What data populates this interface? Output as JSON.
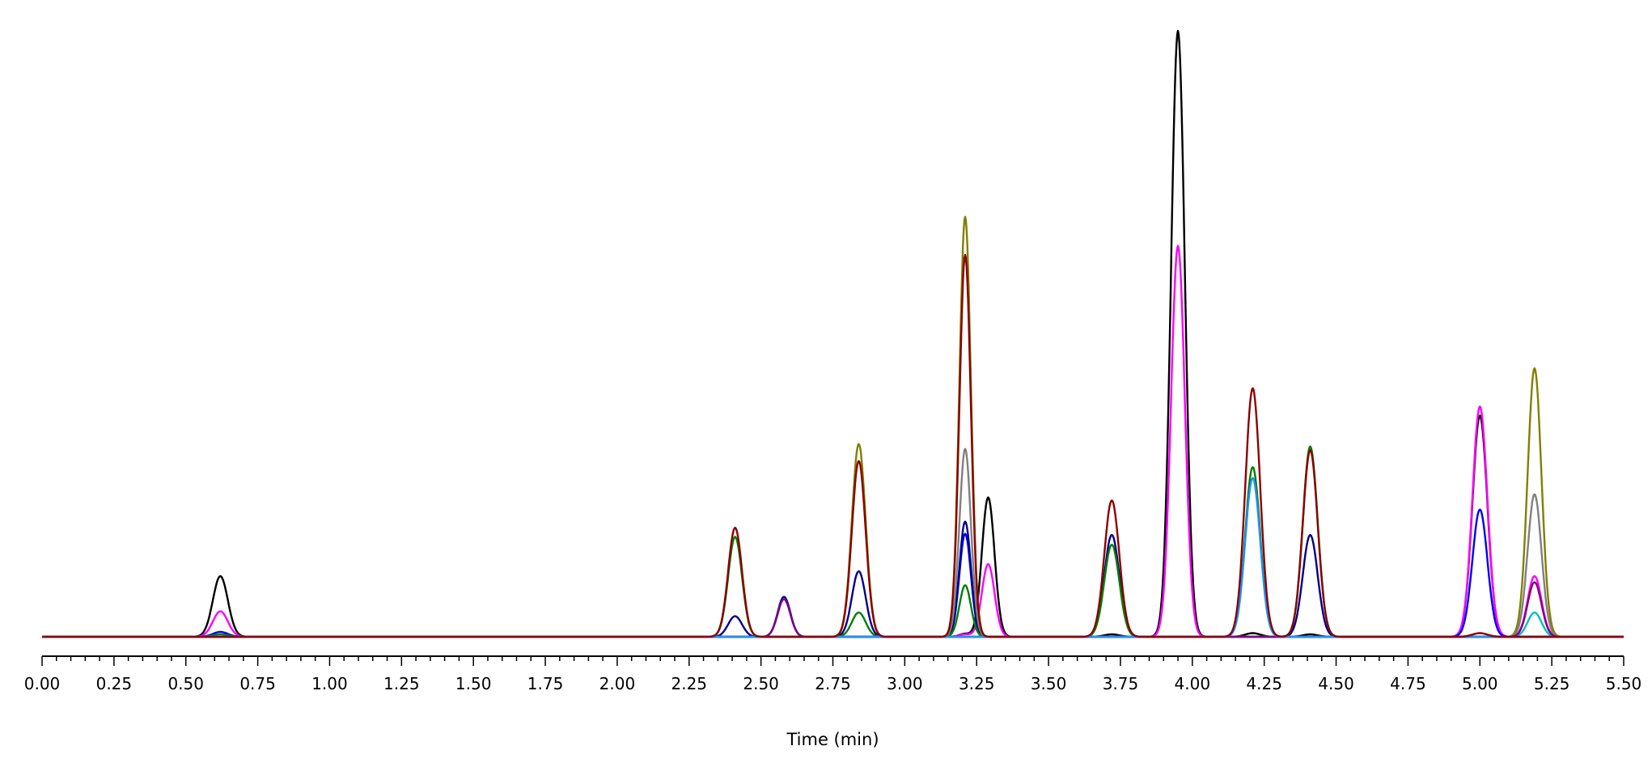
{
  "chart_data": {
    "type": "line",
    "title": "",
    "xlabel": "Time (min)",
    "ylabel": "",
    "xlim": [
      0,
      5.5
    ],
    "ylim": [
      0,
      1.0
    ],
    "grid": false,
    "legend": "none",
    "x_ticks": [
      "0.00",
      "0.25",
      "0.50",
      "0.75",
      "1.00",
      "1.25",
      "1.50",
      "1.75",
      "2.00",
      "2.25",
      "2.50",
      "2.75",
      "3.00",
      "3.25",
      "3.50",
      "3.75",
      "4.00",
      "4.25",
      "4.50",
      "4.75",
      "5.00",
      "5.25",
      "5.50"
    ],
    "series": [
      {
        "color": "#000000",
        "peaks": [
          [
            0.62,
            0.1,
            0.026
          ],
          [
            3.21,
            0.005,
            0.02
          ],
          [
            3.29,
            0.23,
            0.022
          ],
          [
            3.72,
            0.004,
            0.026
          ],
          [
            3.95,
            1.0,
            0.024
          ],
          [
            4.21,
            0.006,
            0.026
          ],
          [
            4.41,
            0.004,
            0.026
          ],
          [
            5.0,
            0.365,
            0.026
          ]
        ]
      },
      {
        "color": "#ff00ff",
        "peaks": [
          [
            0.62,
            0.042,
            0.026
          ],
          [
            3.21,
            0.004,
            0.02
          ],
          [
            3.29,
            0.12,
            0.022
          ],
          [
            3.95,
            0.645,
            0.024
          ],
          [
            5.0,
            0.38,
            0.026
          ],
          [
            5.19,
            0.1,
            0.024
          ]
        ]
      },
      {
        "color": "#0000ff",
        "peaks": [
          [
            0.62,
            0.008,
            0.026
          ],
          [
            3.21,
            0.17,
            0.02
          ],
          [
            5.0,
            0.21,
            0.026
          ]
        ]
      },
      {
        "color": "#00008b",
        "peaks": [
          [
            2.41,
            0.034,
            0.024
          ],
          [
            2.58,
            0.066,
            0.022
          ],
          [
            2.84,
            0.108,
            0.024
          ],
          [
            3.21,
            0.19,
            0.02
          ],
          [
            3.72,
            0.168,
            0.026
          ],
          [
            4.41,
            0.168,
            0.026
          ]
        ]
      },
      {
        "color": "#008000",
        "peaks": [
          [
            0.62,
            0.004,
            0.026
          ],
          [
            2.41,
            0.165,
            0.024
          ],
          [
            2.84,
            0.04,
            0.024
          ],
          [
            3.21,
            0.085,
            0.02
          ],
          [
            3.72,
            0.152,
            0.026
          ],
          [
            4.21,
            0.28,
            0.026
          ],
          [
            4.41,
            0.314,
            0.026
          ]
        ]
      },
      {
        "color": "#808000",
        "peaks": [
          [
            2.84,
            0.318,
            0.024
          ],
          [
            3.21,
            0.693,
            0.02
          ],
          [
            5.19,
            0.443,
            0.024
          ]
        ]
      },
      {
        "color": "#808080",
        "peaks": [
          [
            3.21,
            0.31,
            0.02
          ],
          [
            5.19,
            0.235,
            0.024
          ]
        ]
      },
      {
        "color": "#00bfbf",
        "peaks": [
          [
            5.19,
            0.04,
            0.024
          ]
        ]
      },
      {
        "color": "#800080",
        "peaks": [
          [
            2.58,
            0.062,
            0.022
          ],
          [
            5.19,
            0.09,
            0.024
          ]
        ]
      },
      {
        "color": "#1e90ff",
        "peaks": [
          [
            4.21,
            0.262,
            0.026
          ]
        ]
      },
      {
        "color": "#8b0000",
        "peaks": [
          [
            2.41,
            0.18,
            0.024
          ],
          [
            2.84,
            0.29,
            0.024
          ],
          [
            3.21,
            0.63,
            0.02
          ],
          [
            3.72,
            0.225,
            0.026
          ],
          [
            4.21,
            0.41,
            0.026
          ],
          [
            4.41,
            0.308,
            0.026
          ],
          [
            5.0,
            0.006,
            0.026
          ]
        ]
      }
    ]
  }
}
